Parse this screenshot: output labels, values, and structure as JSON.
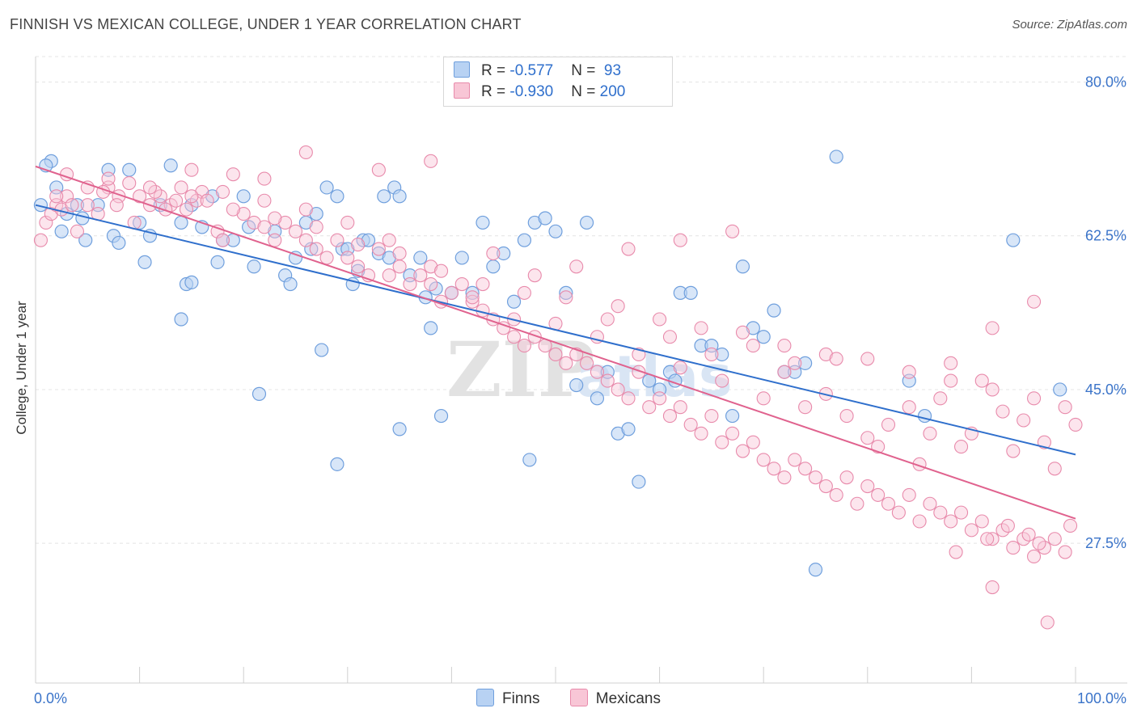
{
  "title": "FINNISH VS MEXICAN COLLEGE, UNDER 1 YEAR CORRELATION CHART",
  "source": "Source: ZipAtlas.com",
  "watermark": {
    "zip": "ZIP",
    "atlas": "atlas"
  },
  "legend": {
    "finns": {
      "r_label": "R = ",
      "r_value": "-0.577",
      "n_label": "N = ",
      "n_value": " 93"
    },
    "mexicans": {
      "r_label": "R = ",
      "r_value": "-0.930",
      "n_label": "N = ",
      "n_value": "200"
    }
  },
  "colors": {
    "finns_fill": "#b8d2f3",
    "finns_stroke": "#6f9fdd",
    "finns_line": "#2f6fcc",
    "mexicans_fill": "#f8c6d6",
    "mexicans_stroke": "#e88aab",
    "mexicans_line": "#e0628e",
    "tick_label": "#3b74c9"
  },
  "chart_data": {
    "type": "scatter",
    "title": "FINNISH VS MEXICAN COLLEGE, UNDER 1 YEAR CORRELATION CHART",
    "xlabel": "",
    "ylabel": "College, Under 1 year",
    "x_tick_labels": [
      "0.0%",
      "100.0%"
    ],
    "y_tick_labels": [
      "80.0%",
      "62.5%",
      "45.0%",
      "27.5%"
    ],
    "y_ticks": [
      80.0,
      62.5,
      45.0,
      27.5
    ],
    "xlim": [
      0,
      100
    ],
    "ylim": [
      11.6,
      82.9
    ],
    "grid": true,
    "legend_position": "top-center",
    "series": [
      {
        "name": "Finns",
        "r": -0.577,
        "n": 93,
        "trend": {
          "x": [
            0,
            100
          ],
          "y": [
            66.0,
            37.6
          ]
        },
        "points": [
          [
            0.5,
            66
          ],
          [
            1.5,
            71
          ],
          [
            1,
            70.5
          ],
          [
            2,
            68
          ],
          [
            3,
            65
          ],
          [
            4.5,
            64.5
          ],
          [
            4,
            66
          ],
          [
            6,
            66
          ],
          [
            7,
            70
          ],
          [
            9,
            70
          ],
          [
            10,
            64
          ],
          [
            11,
            62.5
          ],
          [
            12,
            66
          ],
          [
            13,
            70.5
          ],
          [
            14,
            64
          ],
          [
            15,
            66
          ],
          [
            16,
            63.5
          ],
          [
            17,
            67
          ],
          [
            18,
            62
          ],
          [
            19,
            62
          ],
          [
            2.5,
            63
          ],
          [
            4.8,
            62
          ],
          [
            7.5,
            62.5
          ],
          [
            8,
            61.7
          ],
          [
            10.5,
            59.5
          ],
          [
            14.5,
            57
          ],
          [
            15,
            57.2
          ],
          [
            17.5,
            59.5
          ],
          [
            20,
            67
          ],
          [
            21,
            59
          ],
          [
            20.5,
            63.5
          ],
          [
            23,
            63
          ],
          [
            24,
            58
          ],
          [
            24.5,
            57
          ],
          [
            25,
            60
          ],
          [
            26,
            64
          ],
          [
            26.5,
            61
          ],
          [
            27,
            65
          ],
          [
            28,
            68
          ],
          [
            29,
            67
          ],
          [
            29.5,
            61
          ],
          [
            30,
            61
          ],
          [
            30.5,
            57
          ],
          [
            31,
            58.5
          ],
          [
            31.5,
            62
          ],
          [
            32,
            62
          ],
          [
            33,
            60.5
          ],
          [
            33.5,
            67
          ],
          [
            34,
            60
          ],
          [
            34.5,
            68
          ],
          [
            35,
            67
          ],
          [
            36,
            58
          ],
          [
            37,
            60
          ],
          [
            38,
            52
          ],
          [
            40,
            56
          ],
          [
            41,
            60
          ],
          [
            42,
            56
          ],
          [
            43,
            64
          ],
          [
            44,
            59
          ],
          [
            45,
            60.5
          ],
          [
            46,
            55
          ],
          [
            47,
            62
          ],
          [
            48,
            64
          ],
          [
            49,
            64.5
          ],
          [
            50,
            63
          ],
          [
            51,
            56
          ],
          [
            52,
            45.5
          ],
          [
            53,
            64
          ],
          [
            54,
            44
          ],
          [
            55,
            47
          ],
          [
            56,
            40
          ],
          [
            57,
            40.5
          ],
          [
            58,
            34.5
          ],
          [
            59,
            46
          ],
          [
            60,
            45
          ],
          [
            61,
            47
          ],
          [
            62,
            56
          ],
          [
            63,
            56
          ],
          [
            64,
            50
          ],
          [
            65,
            50
          ],
          [
            66,
            49
          ],
          [
            67,
            42
          ],
          [
            68,
            59
          ],
          [
            69,
            52
          ],
          [
            70,
            51
          ],
          [
            71,
            54
          ],
          [
            72,
            47
          ],
          [
            73,
            47
          ],
          [
            74,
            48
          ],
          [
            75,
            24.5
          ],
          [
            35,
            40.5
          ],
          [
            27.5,
            49.5
          ],
          [
            21.5,
            44.5
          ],
          [
            14,
            53
          ],
          [
            29,
            36.5
          ],
          [
            39,
            42
          ],
          [
            47.5,
            37
          ],
          [
            61.5,
            46
          ],
          [
            38.5,
            56.5
          ],
          [
            37.5,
            55.5
          ],
          [
            77,
            71.5
          ],
          [
            84,
            46
          ],
          [
            85.5,
            42
          ],
          [
            94,
            62
          ],
          [
            98.5,
            45
          ]
        ]
      },
      {
        "name": "Mexicans",
        "r": -0.93,
        "n": 200,
        "trend": {
          "x": [
            0,
            100
          ],
          "y": [
            70.4,
            30.3
          ]
        },
        "points": [
          [
            0.5,
            62
          ],
          [
            1,
            64
          ],
          [
            1.5,
            65
          ],
          [
            2,
            66
          ],
          [
            2.5,
            65.5
          ],
          [
            3,
            67
          ],
          [
            3.5,
            66
          ],
          [
            4,
            63
          ],
          [
            5,
            66
          ],
          [
            6,
            65
          ],
          [
            7,
            68
          ],
          [
            8,
            67
          ],
          [
            9,
            68.5
          ],
          [
            10,
            67
          ],
          [
            11,
            66
          ],
          [
            12,
            67
          ],
          [
            13,
            66
          ],
          [
            14,
            68
          ],
          [
            15,
            70
          ],
          [
            16,
            67.5
          ],
          [
            6.5,
            67.5
          ],
          [
            7.8,
            66
          ],
          [
            9.5,
            64
          ],
          [
            11.5,
            67.5
          ],
          [
            12.5,
            65.5
          ],
          [
            13.5,
            66.5
          ],
          [
            14.5,
            65.5
          ],
          [
            15.5,
            66.5
          ],
          [
            16.5,
            66.5
          ],
          [
            17.5,
            63
          ],
          [
            18,
            62
          ],
          [
            19,
            69.5
          ],
          [
            20,
            65
          ],
          [
            21,
            64
          ],
          [
            22,
            63.5
          ],
          [
            23,
            62
          ],
          [
            24,
            64
          ],
          [
            25,
            63
          ],
          [
            26,
            62
          ],
          [
            27,
            61
          ],
          [
            28,
            60
          ],
          [
            29,
            62
          ],
          [
            30,
            60
          ],
          [
            31,
            59
          ],
          [
            32,
            58
          ],
          [
            33,
            61
          ],
          [
            34,
            58
          ],
          [
            35,
            59
          ],
          [
            36,
            57
          ],
          [
            37,
            58
          ],
          [
            38,
            57
          ],
          [
            39,
            55
          ],
          [
            40,
            56
          ],
          [
            41,
            57
          ],
          [
            42,
            55
          ],
          [
            43,
            54
          ],
          [
            44,
            53
          ],
          [
            45,
            52
          ],
          [
            46,
            51
          ],
          [
            47,
            50
          ],
          [
            48,
            51
          ],
          [
            49,
            50
          ],
          [
            50,
            49
          ],
          [
            51,
            48
          ],
          [
            52,
            49
          ],
          [
            53,
            48
          ],
          [
            54,
            47
          ],
          [
            55,
            46
          ],
          [
            56,
            45
          ],
          [
            57,
            44
          ],
          [
            58,
            47
          ],
          [
            59,
            43
          ],
          [
            60,
            44
          ],
          [
            61,
            42
          ],
          [
            62,
            43
          ],
          [
            63,
            41
          ],
          [
            64,
            40
          ],
          [
            65,
            42
          ],
          [
            66,
            39
          ],
          [
            67,
            40
          ],
          [
            68,
            38
          ],
          [
            69,
            39
          ],
          [
            70,
            37
          ],
          [
            71,
            36
          ],
          [
            72,
            35
          ],
          [
            73,
            37
          ],
          [
            74,
            36
          ],
          [
            75,
            35
          ],
          [
            76,
            34
          ],
          [
            77,
            33
          ],
          [
            78,
            35
          ],
          [
            79,
            32
          ],
          [
            80,
            34
          ],
          [
            81,
            33
          ],
          [
            82,
            32
          ],
          [
            83,
            31
          ],
          [
            84,
            33
          ],
          [
            85,
            30
          ],
          [
            86,
            32
          ],
          [
            87,
            31
          ],
          [
            88,
            30
          ],
          [
            89,
            31
          ],
          [
            90,
            29
          ],
          [
            91,
            30
          ],
          [
            92,
            28
          ],
          [
            93,
            29
          ],
          [
            94,
            27
          ],
          [
            95,
            28
          ],
          [
            96,
            26
          ],
          [
            97,
            27
          ],
          [
            98,
            28
          ],
          [
            99,
            26.5
          ],
          [
            99.5,
            29.5
          ],
          [
            97.3,
            18.5
          ],
          [
            92,
            22.5
          ],
          [
            88.5,
            26.5
          ],
          [
            96.5,
            27.5
          ],
          [
            95.5,
            28.5
          ],
          [
            91.5,
            28
          ],
          [
            93.5,
            29.5
          ],
          [
            33,
            70
          ],
          [
            26,
            72
          ],
          [
            38,
            71
          ],
          [
            22,
            69
          ],
          [
            44,
            60.5
          ],
          [
            48,
            58
          ],
          [
            52,
            59
          ],
          [
            56,
            54.5
          ],
          [
            60,
            53
          ],
          [
            64,
            52
          ],
          [
            68,
            51.5
          ],
          [
            72,
            50
          ],
          [
            76,
            49
          ],
          [
            80,
            48.5
          ],
          [
            84,
            47
          ],
          [
            88,
            46
          ],
          [
            92,
            45
          ],
          [
            96,
            44
          ],
          [
            99,
            43
          ],
          [
            86,
            40
          ],
          [
            90,
            40
          ],
          [
            94,
            38
          ],
          [
            98,
            36
          ],
          [
            82,
            41
          ],
          [
            78,
            42
          ],
          [
            74,
            43
          ],
          [
            70,
            44
          ],
          [
            66,
            46
          ],
          [
            62,
            47.5
          ],
          [
            58,
            49
          ],
          [
            54,
            51
          ],
          [
            50,
            52.5
          ],
          [
            46,
            53
          ],
          [
            42,
            55.5
          ],
          [
            38,
            59
          ],
          [
            34,
            62
          ],
          [
            30,
            64
          ],
          [
            26,
            65.5
          ],
          [
            22,
            66.5
          ],
          [
            18,
            67.5
          ],
          [
            76,
            44.5
          ],
          [
            80,
            39.5
          ],
          [
            84,
            43
          ],
          [
            88,
            48
          ],
          [
            92,
            52
          ],
          [
            96,
            55
          ],
          [
            100,
            41
          ],
          [
            57,
            61
          ],
          [
            62,
            62
          ],
          [
            67,
            63
          ],
          [
            72,
            47
          ],
          [
            77,
            48.5
          ],
          [
            81,
            38.5
          ],
          [
            85,
            36.5
          ],
          [
            89,
            38.5
          ],
          [
            93,
            42.5
          ],
          [
            97,
            39
          ],
          [
            95,
            41.5
          ],
          [
            91,
            46
          ],
          [
            87,
            44
          ],
          [
            73,
            48
          ],
          [
            69,
            50
          ],
          [
            65,
            49
          ],
          [
            61,
            51
          ],
          [
            55,
            53
          ],
          [
            51,
            55.5
          ],
          [
            47,
            56
          ],
          [
            43,
            57
          ],
          [
            39,
            58.5
          ],
          [
            35,
            60.5
          ],
          [
            31,
            61.5
          ],
          [
            27,
            63.5
          ],
          [
            23,
            64.5
          ],
          [
            19,
            65.5
          ],
          [
            15,
            67
          ],
          [
            11,
            68
          ],
          [
            7,
            69
          ],
          [
            3,
            69.5
          ],
          [
            2,
            67
          ],
          [
            5,
            68
          ]
        ]
      }
    ]
  }
}
